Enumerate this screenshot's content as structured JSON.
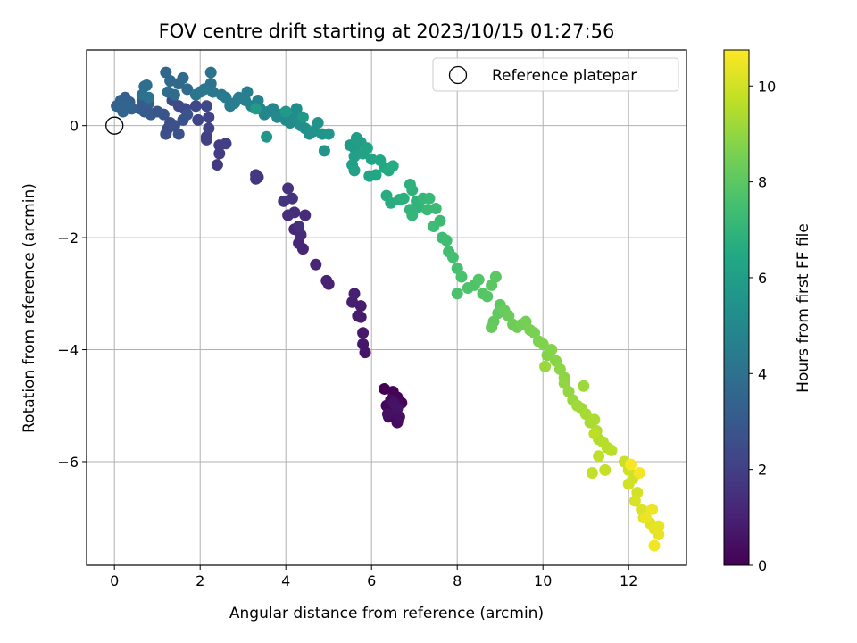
{
  "chart_data": {
    "type": "scatter",
    "title": "FOV centre drift starting at 2023/10/15 01:27:56",
    "xlabel": "Angular distance from reference (arcmin)",
    "ylabel": "Rotation from reference (arcmin)",
    "colorbar_label": "Hours from first FF file",
    "xlim": [
      -0.65,
      13.35
    ],
    "ylim": [
      -7.85,
      1.35
    ],
    "clim": [
      0,
      10.75
    ],
    "x_ticks": [
      0,
      2,
      4,
      6,
      8,
      10,
      12
    ],
    "y_ticks": [
      0,
      -2,
      -4,
      -6
    ],
    "colorbar_ticks": [
      0,
      2,
      4,
      6,
      8,
      10
    ],
    "grid": true,
    "legend": {
      "position": "top-right",
      "label": "Reference platepar"
    },
    "reference_point": {
      "x": 0,
      "y": 0
    },
    "colormap": "viridis",
    "series": [
      {
        "points": [
          [
            6.3,
            -4.7
          ],
          [
            6.5,
            -4.75
          ],
          [
            6.6,
            -4.85
          ],
          [
            6.7,
            -4.95
          ],
          [
            6.35,
            -5.0
          ],
          [
            6.55,
            -5.1
          ],
          [
            6.4,
            -5.2
          ],
          [
            6.6,
            -5.3
          ],
          [
            6.45,
            -4.9
          ],
          [
            6.65,
            -5.2
          ],
          [
            6.38,
            -5.15
          ],
          [
            6.52,
            -4.95
          ],
          [
            6.6,
            -5.05
          ],
          [
            5.85,
            -4.05
          ],
          [
            5.8,
            -3.9
          ],
          [
            5.8,
            -3.7
          ],
          [
            5.75,
            -3.42
          ],
          [
            5.68,
            -3.4
          ],
          [
            5.75,
            -3.22
          ],
          [
            5.55,
            -3.15
          ],
          [
            5.6,
            -3.0
          ],
          [
            5.0,
            -2.83
          ],
          [
            4.95,
            -2.77
          ],
          [
            4.7,
            -2.48
          ],
          [
            4.4,
            -2.2
          ],
          [
            4.3,
            -2.1
          ],
          [
            4.2,
            -1.85
          ],
          [
            4.35,
            -1.95
          ],
          [
            4.45,
            -1.6
          ],
          [
            4.2,
            -1.55
          ],
          [
            4.05,
            -1.6
          ],
          [
            4.3,
            -1.8
          ],
          [
            4.15,
            -1.3
          ],
          [
            4.05,
            -1.12
          ],
          [
            3.95,
            -1.35
          ],
          [
            3.35,
            -0.92
          ],
          [
            3.3,
            -0.95
          ],
          [
            3.3,
            -0.88
          ],
          [
            2.4,
            -0.7
          ],
          [
            2.45,
            -0.5
          ],
          [
            2.45,
            -0.35
          ],
          [
            2.6,
            -0.32
          ],
          [
            2.15,
            -0.2
          ],
          [
            2.15,
            -0.25
          ],
          [
            2.2,
            -0.05
          ],
          [
            2.2,
            0.15
          ],
          [
            1.95,
            0.1
          ],
          [
            2.15,
            0.35
          ],
          [
            1.9,
            0.35
          ],
          [
            1.65,
            0.3
          ],
          [
            1.5,
            0.35
          ],
          [
            1.35,
            0.45
          ],
          [
            1.25,
            -0.05
          ],
          [
            1.2,
            -0.15
          ],
          [
            1.3,
            0.05
          ],
          [
            1.4,
            0.0
          ],
          [
            1.5,
            -0.15
          ],
          [
            1.6,
            0.1
          ],
          [
            1.7,
            0.2
          ],
          [
            1.15,
            0.2
          ],
          [
            1.0,
            0.25
          ],
          [
            0.85,
            0.2
          ],
          [
            0.75,
            0.3
          ],
          [
            0.7,
            0.25
          ],
          [
            0.6,
            0.3
          ],
          [
            0.65,
            0.45
          ],
          [
            0.8,
            0.4
          ],
          [
            0.4,
            0.3
          ],
          [
            0.35,
            0.42
          ],
          [
            0.25,
            0.5
          ],
          [
            0.15,
            0.45
          ],
          [
            0.05,
            0.35
          ],
          [
            0.2,
            0.25
          ],
          [
            0.3,
            0.35
          ],
          [
            1.2,
            0.95
          ],
          [
            1.3,
            0.8
          ],
          [
            1.5,
            0.75
          ],
          [
            1.6,
            0.85
          ],
          [
            1.7,
            0.65
          ],
          [
            1.4,
            0.55
          ],
          [
            1.25,
            0.6
          ],
          [
            0.7,
            0.7
          ],
          [
            0.75,
            0.72
          ],
          [
            0.65,
            0.55
          ],
          [
            0.8,
            0.5
          ],
          [
            2.25,
            0.95
          ],
          [
            2.25,
            0.75
          ],
          [
            2.0,
            0.6
          ],
          [
            1.9,
            0.55
          ],
          [
            2.1,
            0.65
          ],
          [
            2.3,
            0.6
          ],
          [
            2.5,
            0.55
          ],
          [
            2.6,
            0.5
          ],
          [
            2.7,
            0.35
          ],
          [
            2.8,
            0.4
          ],
          [
            2.9,
            0.5
          ],
          [
            3.1,
            0.6
          ],
          [
            3.05,
            0.45
          ],
          [
            3.2,
            0.35
          ],
          [
            3.35,
            0.45
          ],
          [
            3.4,
            0.3
          ],
          [
            3.5,
            0.2
          ],
          [
            3.6,
            0.25
          ],
          [
            3.7,
            0.3
          ],
          [
            3.8,
            0.15
          ],
          [
            3.9,
            0.2
          ],
          [
            4.0,
            0.1
          ],
          [
            4.1,
            0.05
          ],
          [
            4.2,
            0.15
          ],
          [
            4.25,
            0.3
          ],
          [
            4.35,
            0.0
          ],
          [
            4.45,
            -0.05
          ],
          [
            4.55,
            -0.15
          ],
          [
            4.65,
            -0.1
          ],
          [
            4.75,
            0.05
          ],
          [
            4.85,
            -0.15
          ],
          [
            4.9,
            -0.45
          ],
          [
            5.0,
            -0.15
          ],
          [
            3.55,
            -0.2
          ],
          [
            4.0,
            0.25
          ],
          [
            4.4,
            0.15
          ],
          [
            3.3,
            0.3
          ],
          [
            5.5,
            -0.35
          ],
          [
            5.6,
            -0.4
          ],
          [
            5.65,
            -0.22
          ],
          [
            5.75,
            -0.3
          ],
          [
            5.6,
            -0.55
          ],
          [
            5.55,
            -0.7
          ],
          [
            5.6,
            -0.8
          ],
          [
            5.8,
            -0.5
          ],
          [
            5.9,
            -0.4
          ],
          [
            6.0,
            -0.6
          ],
          [
            5.95,
            -0.9
          ],
          [
            6.1,
            -0.88
          ],
          [
            6.2,
            -0.62
          ],
          [
            6.3,
            -0.75
          ],
          [
            6.4,
            -0.8
          ],
          [
            6.5,
            -0.72
          ],
          [
            6.35,
            -1.25
          ],
          [
            6.45,
            -1.38
          ],
          [
            6.65,
            -1.32
          ],
          [
            6.75,
            -1.3
          ],
          [
            6.9,
            -1.05
          ],
          [
            6.95,
            -1.15
          ],
          [
            7.05,
            -1.35
          ],
          [
            7.1,
            -1.45
          ],
          [
            6.9,
            -1.5
          ],
          [
            6.95,
            -1.6
          ],
          [
            7.2,
            -1.3
          ],
          [
            7.35,
            -1.3
          ],
          [
            7.3,
            -1.5
          ],
          [
            7.5,
            -1.48
          ],
          [
            7.6,
            -1.7
          ],
          [
            7.45,
            -1.8
          ],
          [
            7.65,
            -2.0
          ],
          [
            7.75,
            -2.05
          ],
          [
            7.8,
            -2.25
          ],
          [
            7.9,
            -2.35
          ],
          [
            8.0,
            -2.55
          ],
          [
            8.1,
            -2.7
          ],
          [
            8.0,
            -3.0
          ],
          [
            8.25,
            -2.9
          ],
          [
            8.4,
            -2.85
          ],
          [
            8.5,
            -2.75
          ],
          [
            8.6,
            -3.0
          ],
          [
            8.7,
            -3.05
          ],
          [
            8.8,
            -2.85
          ],
          [
            8.9,
            -2.7
          ],
          [
            9.0,
            -3.2
          ],
          [
            8.95,
            -3.35
          ],
          [
            8.85,
            -3.5
          ],
          [
            8.8,
            -3.6
          ],
          [
            9.1,
            -3.3
          ],
          [
            9.2,
            -3.4
          ],
          [
            9.3,
            -3.55
          ],
          [
            9.4,
            -3.6
          ],
          [
            9.5,
            -3.55
          ],
          [
            9.6,
            -3.5
          ],
          [
            9.7,
            -3.65
          ],
          [
            9.8,
            -3.7
          ],
          [
            9.9,
            -3.85
          ],
          [
            10.0,
            -3.9
          ],
          [
            10.1,
            -4.1
          ],
          [
            10.2,
            -4.0
          ],
          [
            10.3,
            -4.2
          ],
          [
            10.4,
            -4.35
          ],
          [
            10.5,
            -4.5
          ],
          [
            10.5,
            -4.6
          ],
          [
            10.6,
            -4.75
          ],
          [
            10.7,
            -4.9
          ],
          [
            10.05,
            -4.3
          ],
          [
            10.95,
            -4.65
          ],
          [
            10.8,
            -5.0
          ],
          [
            10.9,
            -5.05
          ],
          [
            11.0,
            -5.15
          ],
          [
            11.1,
            -5.3
          ],
          [
            11.2,
            -5.25
          ],
          [
            11.25,
            -5.45
          ],
          [
            11.3,
            -5.6
          ],
          [
            11.4,
            -5.65
          ],
          [
            11.5,
            -5.75
          ],
          [
            11.6,
            -5.8
          ],
          [
            11.2,
            -5.5
          ],
          [
            11.3,
            -5.9
          ],
          [
            11.15,
            -6.2
          ],
          [
            11.45,
            -6.15
          ],
          [
            11.9,
            -6.0
          ],
          [
            12.0,
            -6.15
          ],
          [
            12.1,
            -6.3
          ],
          [
            12.0,
            -6.4
          ],
          [
            12.2,
            -6.55
          ],
          [
            12.15,
            -6.7
          ],
          [
            12.3,
            -6.85
          ],
          [
            12.35,
            -7.0
          ],
          [
            12.5,
            -7.1
          ],
          [
            12.6,
            -7.2
          ],
          [
            12.7,
            -7.15
          ],
          [
            12.7,
            -7.3
          ],
          [
            12.4,
            -7.0
          ],
          [
            12.55,
            -6.85
          ],
          [
            12.6,
            -7.5
          ],
          [
            12.25,
            -6.2
          ],
          [
            12.05,
            -6.05
          ]
        ]
      }
    ]
  }
}
